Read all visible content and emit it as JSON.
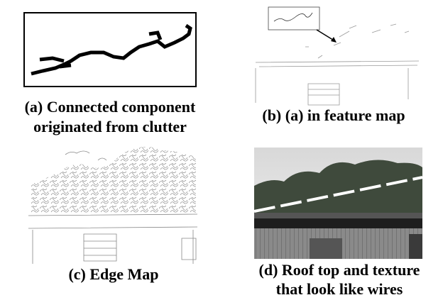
{
  "panels": [
    {
      "caption": [
        "(a) Connected component",
        "originated from clutter"
      ]
    },
    {
      "caption": [
        "(b) (a) in feature map"
      ]
    },
    {
      "caption": [
        "(c) Edge Map"
      ]
    },
    {
      "caption": [
        "(d) Roof top and texture",
        "that look like wires"
      ]
    }
  ]
}
